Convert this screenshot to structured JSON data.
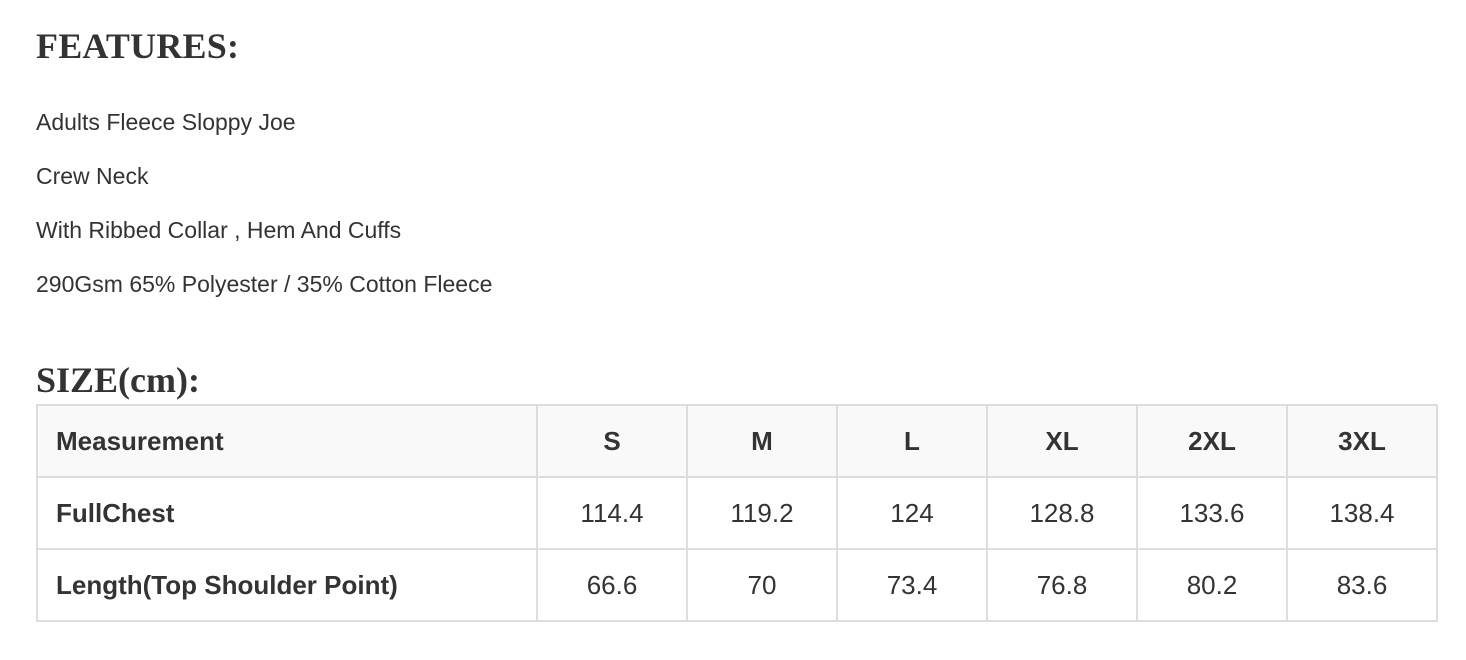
{
  "features": {
    "title": "FEATURES:",
    "items": [
      "Adults Fleece Sloppy Joe",
      "Crew Neck",
      "With Ribbed Collar , Hem And Cuffs",
      "290Gsm 65% Polyester / 35% Cotton Fleece"
    ]
  },
  "size": {
    "title": "SIZE(cm):",
    "headers": [
      "Measurement",
      "S",
      "M",
      "L",
      "XL",
      "2XL",
      "3XL"
    ],
    "rows": [
      {
        "label": "FullChest",
        "values": [
          "114.4",
          "119.2",
          "124",
          "128.8",
          "133.6",
          "138.4"
        ]
      },
      {
        "label": "Length(Top Shoulder Point)",
        "values": [
          "66.6",
          "70",
          "73.4",
          "76.8",
          "80.2",
          "83.6"
        ]
      }
    ]
  },
  "colors": {
    "text": "#333333",
    "border": "#dddddd",
    "header_bg": "#f9f9f9"
  }
}
